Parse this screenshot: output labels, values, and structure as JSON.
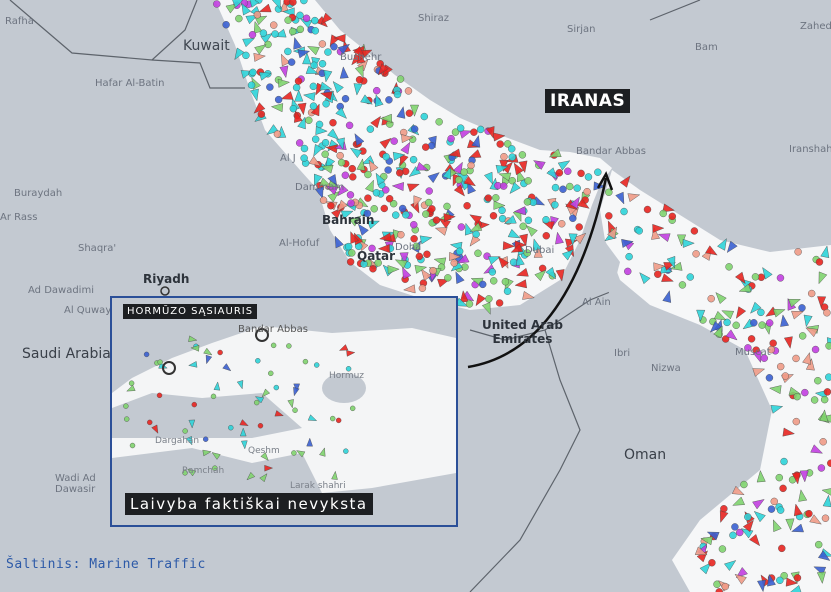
{
  "map": {
    "country_highlight": "IRANAS",
    "labels": {
      "rafha": "Rafha",
      "kuwait": "Kuwait",
      "hafar": "Hafar Al-Batin",
      "shiraz": "Shiraz",
      "sirjan": "Sirjan",
      "bam": "Bam",
      "zahedan": "Zahed",
      "bushehr": "Bushehr",
      "buraydah": "Buraydah",
      "ar_rass": "Ar Rass",
      "shaqra": "Shaqra'",
      "riyadh": "Riyadh",
      "ad_dawadimi": "Ad Dawadimi",
      "al_quway": "Al Quway",
      "saudi_arabia": "Saudi Arabia",
      "al_jubail": "Al J",
      "dammam": "Dammam",
      "bahrain": "Bahrain",
      "al_hofuf": "Al-Hofuf",
      "qatar": "Qatar",
      "doha": "Doha",
      "dubai": "Dubai",
      "uae": "United Arab\nEmirates",
      "al_ain": "Al Ain",
      "ibri": "Ibri",
      "nizwa": "Nizwa",
      "muscat": "Muscat",
      "oman": "Oman",
      "wadi": "Wadi Ad\nDawasir",
      "bandar_abbas": "Bandar Abbas",
      "iranshahr": "Iranshahr"
    },
    "marker_colors": {
      "tanker": "#e8231f",
      "cargo": "#7fd36e",
      "passenger": "#2ed3d8",
      "fishing": "#ef9a86",
      "special": "#c23ee0",
      "other": "#3a5fd0"
    }
  },
  "inset": {
    "title": "HORMŪZO SĄSIAURIS",
    "caption": "Laivyba faktiškai nevyksta",
    "labels": {
      "bandar_abbas": "Bandar Abbas",
      "hormuz": "Hormuz",
      "dargahan": "Dargahan",
      "qeshm": "Qeshm",
      "ramchah": "Ramchah",
      "laraksharhi": "Larak shahri"
    }
  },
  "source": "Šaltinis: Marine Traffic"
}
